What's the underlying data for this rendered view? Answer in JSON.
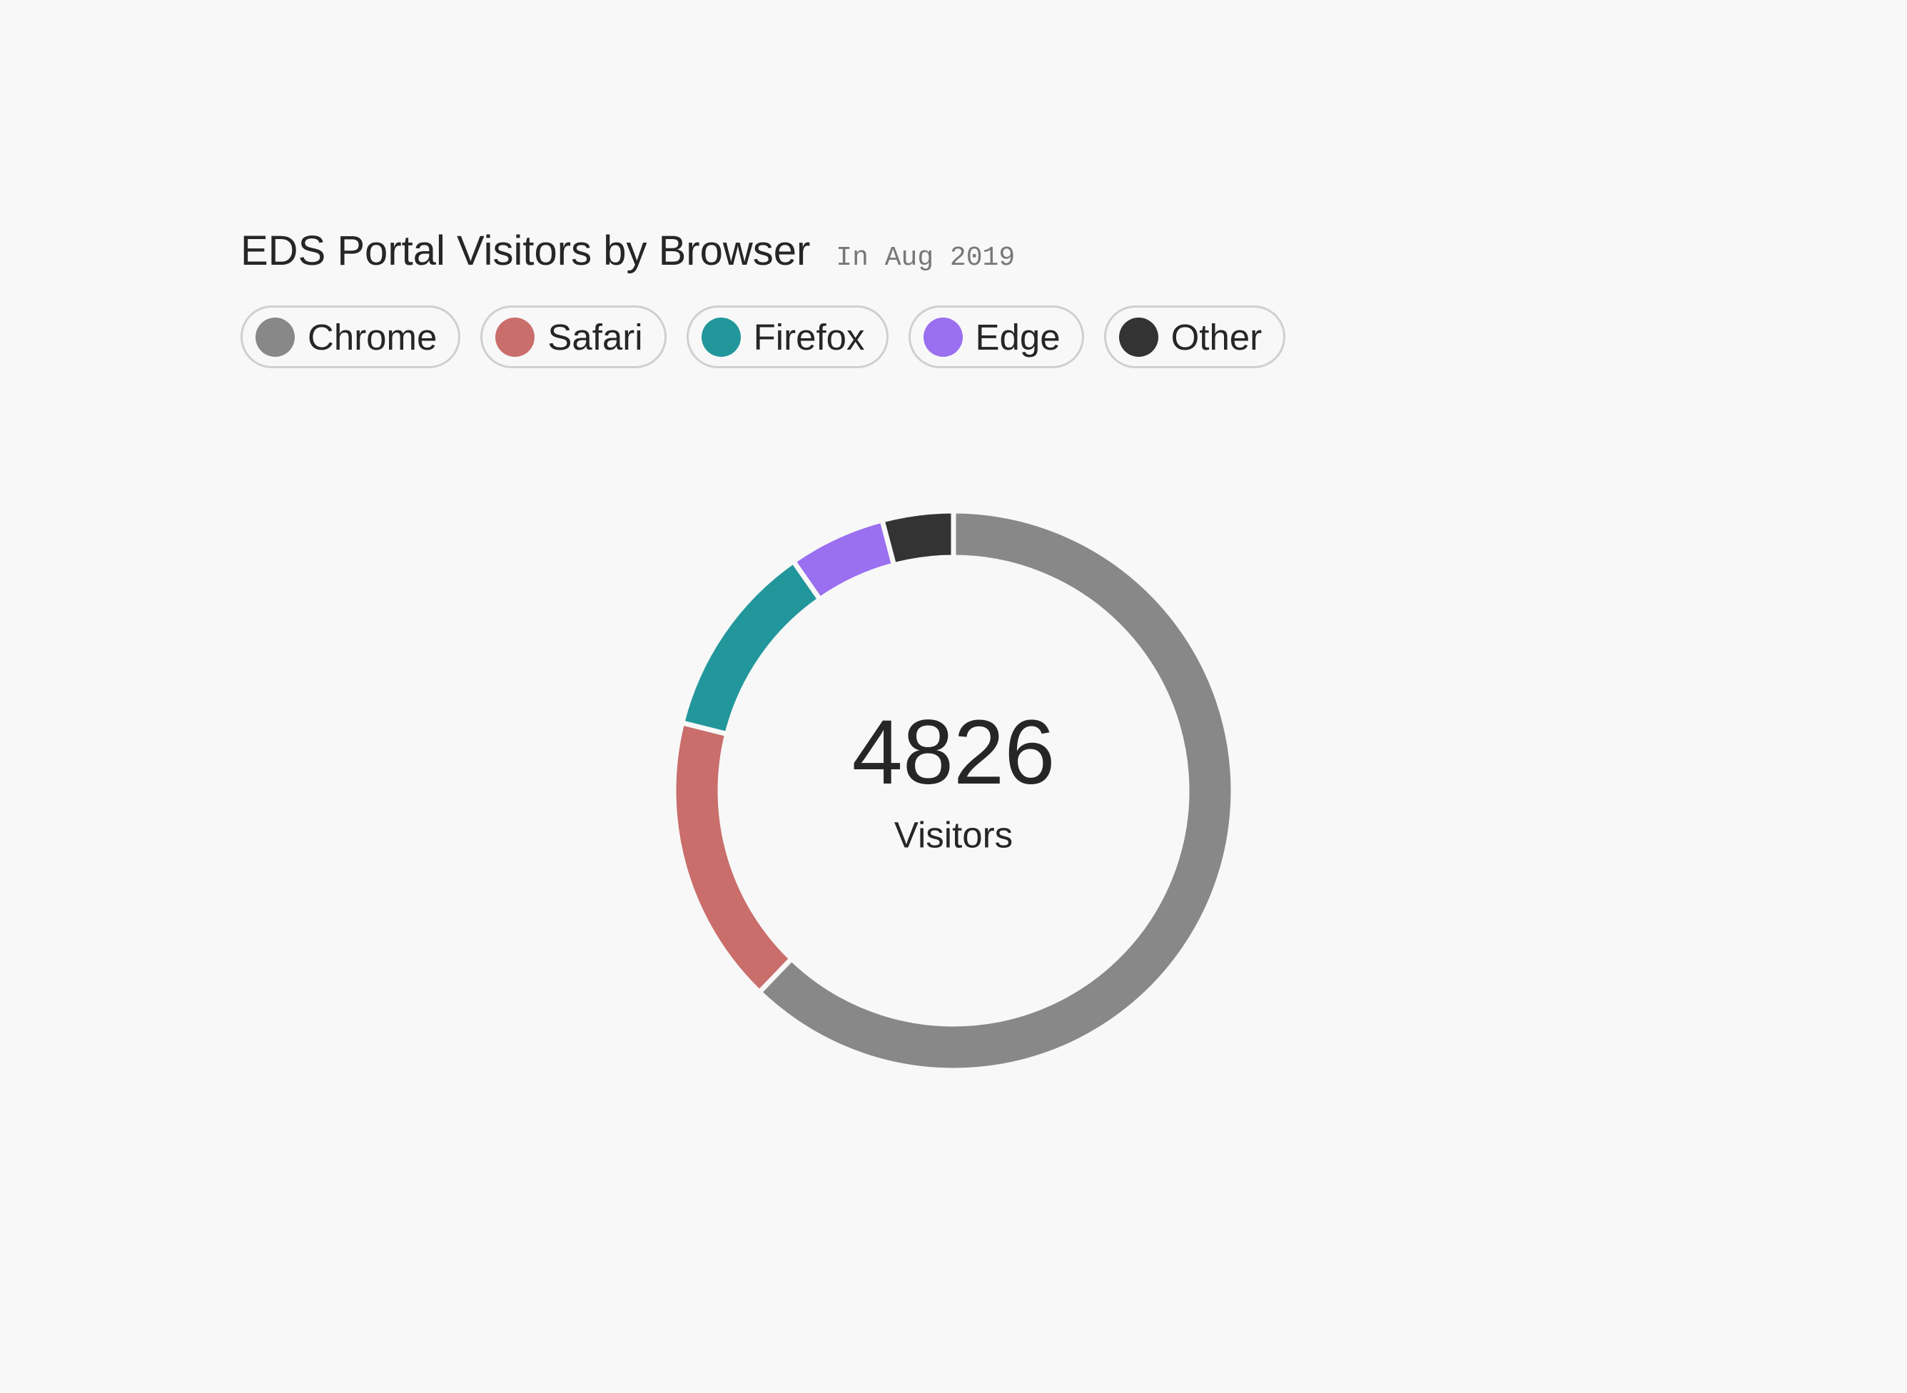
{
  "chart_data": {
    "type": "donut",
    "title": "EDS Portal Visitors by Browser",
    "subtitle": "In Aug 2019",
    "total": 4826,
    "total_label": "Visitors",
    "series": [
      {
        "name": "Chrome",
        "color": "#888888",
        "values": [
          3002
        ]
      },
      {
        "name": "Safari",
        "color": "#c96e6b",
        "values": [
          806
        ]
      },
      {
        "name": "Firefox",
        "color": "#22979b",
        "values": [
          550
        ]
      },
      {
        "name": "Edge",
        "color": "#9a6ff0",
        "values": [
          270
        ]
      },
      {
        "name": "Other",
        "color": "#333333",
        "values": [
          198
        ]
      }
    ]
  }
}
